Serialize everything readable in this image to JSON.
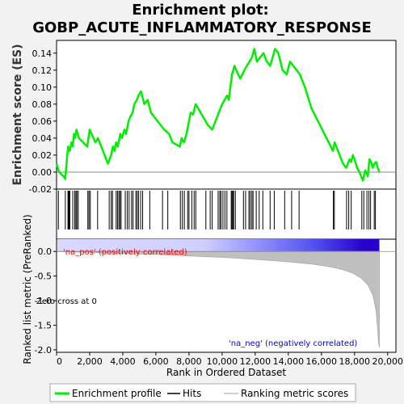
{
  "chart_data": {
    "type": "line",
    "title_line1": "Enrichment plot:",
    "title_line2": "GOBP_ACUTE_INFLAMMATORY_RESPONSE",
    "enrichment": {
      "ylabel": "Enrichment score (ES)",
      "ylim": [
        -0.02,
        0.155
      ],
      "yticks": [
        -0.02,
        0.0,
        0.02,
        0.04,
        0.06,
        0.08,
        0.1,
        0.12,
        0.14
      ],
      "ytick_labels": [
        "-0.02",
        "0.00",
        "0.02",
        "0.04",
        "0.06",
        "0.08",
        "0.10",
        "0.12",
        "0.14"
      ],
      "line_color": "#00ee00",
      "series": [
        {
          "x": [
            0,
            150,
            420,
            520,
            600,
            650,
            700,
            800,
            900,
            980,
            1050,
            1120,
            1200,
            1350,
            1850,
            2000,
            2350,
            2500,
            2700,
            3100,
            3300,
            3400,
            3500,
            3600,
            3700,
            3850,
            3950,
            4100,
            4200,
            4350,
            4450,
            4600,
            4700,
            4850,
            4950,
            5100,
            5300,
            5500,
            5700,
            6300,
            6500,
            6800,
            7000,
            7450,
            7550,
            7700,
            7850,
            8000,
            8100,
            8250,
            8400,
            8550,
            9150,
            9400,
            9600,
            9800,
            10000,
            10150,
            10300,
            10400,
            10500,
            10600,
            10750,
            10900,
            11100,
            11350,
            11500,
            11650,
            11800,
            11950,
            12100,
            12300,
            12500,
            12700,
            12900,
            13050,
            13200,
            13400,
            13650,
            13900,
            14100,
            14300,
            14500,
            14700,
            15000,
            15400,
            16700,
            16800,
            17300,
            17500,
            17700,
            17800,
            17900,
            18000,
            18150,
            18300,
            18500,
            18650,
            18800,
            18900,
            19000,
            19100,
            19200,
            19300,
            19400,
            19500
          ],
          "y": [
            0.01,
            0.0,
            -0.005,
            -0.008,
            0.01,
            0.02,
            0.03,
            0.025,
            0.035,
            0.03,
            0.045,
            0.04,
            0.05,
            0.04,
            0.03,
            0.05,
            0.035,
            0.04,
            0.03,
            0.01,
            0.02,
            0.03,
            0.025,
            0.035,
            0.03,
            0.045,
            0.04,
            0.05,
            0.045,
            0.06,
            0.065,
            0.07,
            0.08,
            0.085,
            0.09,
            0.095,
            0.08,
            0.085,
            0.07,
            0.055,
            0.05,
            0.045,
            0.035,
            0.03,
            0.04,
            0.035,
            0.045,
            0.06,
            0.07,
            0.068,
            0.08,
            0.075,
            0.055,
            0.05,
            0.06,
            0.07,
            0.08,
            0.085,
            0.09,
            0.085,
            0.1,
            0.115,
            0.125,
            0.118,
            0.11,
            0.12,
            0.125,
            0.13,
            0.135,
            0.145,
            0.13,
            0.135,
            0.14,
            0.13,
            0.125,
            0.135,
            0.145,
            0.14,
            0.12,
            0.115,
            0.13,
            0.125,
            0.12,
            0.115,
            0.1,
            0.075,
            0.025,
            0.035,
            0.01,
            0.005,
            0.015,
            0.012,
            0.02,
            0.015,
            0.005,
            0.0,
            -0.01,
            0.002,
            -0.005,
            0.015,
            0.012,
            0.005,
            0.01,
            0.012,
            0.005,
            0.0
          ]
        }
      ]
    },
    "hits": {
      "label": "Hits",
      "positions": [
        110,
        530,
        690,
        720,
        760,
        800,
        980,
        1100,
        1170,
        1230,
        1310,
        1890,
        1960,
        2040,
        2480,
        3180,
        3300,
        3380,
        3600,
        3680,
        3760,
        3830,
        3900,
        4150,
        4270,
        4380,
        4530,
        4620,
        4790,
        4870,
        4950,
        5080,
        5200,
        5630,
        6400,
        6720,
        7480,
        7600,
        7720,
        7920,
        8000,
        8170,
        8310,
        8410,
        9020,
        9280,
        9400,
        9760,
        9860,
        9930,
        10050,
        10170,
        10290,
        10550,
        10600,
        10650,
        10700,
        10800,
        11290,
        11420,
        11620,
        11700,
        11800,
        11870,
        12060,
        12240,
        12460,
        12900,
        13150,
        13780,
        14200,
        14650,
        16720,
        16780,
        17520,
        17650,
        17800,
        18440,
        18560,
        18750,
        18870,
        18970,
        19190,
        19260
      ]
    },
    "ranking": {
      "ylabel": "Ranked list metric (PreRanked)",
      "ylim": [
        -2.05,
        0.25
      ],
      "yticks": [
        0.0,
        -0.5,
        -1.0,
        -1.5,
        -2.0
      ],
      "ytick_labels": [
        "0.0",
        "-0.5",
        "-1.0",
        "-1.5",
        "-2.0"
      ],
      "label_pos": "'na_pos' (positively correlated)",
      "label_neg": "'na_neg' (negatively correlated)",
      "zero_cross_label": "Zero cross at 0",
      "curve": {
        "x": [
          0,
          2000,
          4000,
          6000,
          8000,
          10000,
          12000,
          14000,
          15500,
          16500,
          17300,
          17900,
          18400,
          18800,
          19100,
          19300,
          19400,
          19450,
          19500
        ],
        "y": [
          0.0,
          -0.02,
          -0.04,
          -0.06,
          -0.09,
          -0.12,
          -0.16,
          -0.21,
          -0.26,
          -0.31,
          -0.37,
          -0.44,
          -0.54,
          -0.68,
          -0.88,
          -1.2,
          -1.6,
          -1.85,
          -1.95
        ]
      }
    },
    "xaxis": {
      "label": "Rank in Ordered Dataset",
      "xlim": [
        0,
        20500
      ],
      "ticks": [
        0,
        2000,
        4000,
        6000,
        8000,
        10000,
        12000,
        14000,
        16000,
        18000,
        20000
      ],
      "tick_labels": [
        "0",
        "2,000",
        "4,000",
        "6,000",
        "8,000",
        "10,000",
        "12,000",
        "14,000",
        "16,000",
        "18,000",
        "20,000"
      ]
    },
    "legend": {
      "placement": "bottom",
      "items": [
        "Enrichment profile",
        "Hits",
        "Ranking metric scores"
      ]
    }
  }
}
